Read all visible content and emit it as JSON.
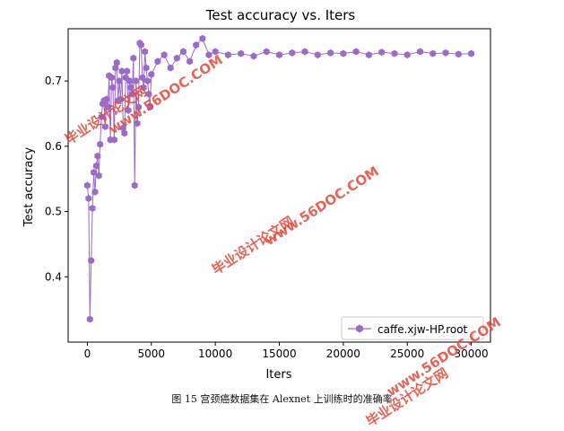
{
  "figure_caption": "图 15 宫颈癌数据集在 Alexnet 上训练时的准确率",
  "watermark_texts": [
    "毕业设计论文网",
    "www.56DOC.COM"
  ],
  "colors": {
    "series": "#9b6bc8",
    "axis": "#000000",
    "watermark": "#e0493c"
  },
  "chart_data": {
    "type": "line",
    "title": "Test accuracy  vs. Iters",
    "xlabel": "Iters",
    "ylabel": "Test accuracy",
    "xlim": [
      -1500,
      31500
    ],
    "ylim": [
      0.3,
      0.78
    ],
    "xticks": [
      0,
      5000,
      10000,
      15000,
      20000,
      25000,
      30000
    ],
    "yticks": [
      0.4,
      0.5,
      0.6,
      0.7
    ],
    "grid": false,
    "legend_position": "lower-right",
    "series": [
      {
        "name": "caffe.xjw-HP.root",
        "marker": "hexagon",
        "x": [
          0,
          100,
          200,
          300,
          400,
          500,
          600,
          700,
          800,
          900,
          1000,
          1100,
          1200,
          1300,
          1400,
          1500,
          1600,
          1700,
          1800,
          1900,
          2000,
          2100,
          2200,
          2300,
          2400,
          2500,
          2600,
          2700,
          2800,
          2900,
          3000,
          3100,
          3200,
          3300,
          3400,
          3500,
          3600,
          3700,
          3800,
          3900,
          4000,
          4100,
          4200,
          4300,
          4400,
          4500,
          4600,
          4700,
          4800,
          4900,
          5000,
          5500,
          6000,
          6500,
          7000,
          7500,
          8000,
          8500,
          9000,
          9500,
          10000,
          11000,
          12000,
          13000,
          14000,
          15000,
          16000,
          17000,
          18000,
          19000,
          20000,
          21000,
          22000,
          23000,
          24000,
          25000,
          26000,
          27000,
          28000,
          29000,
          30000
        ],
        "y": [
          0.54,
          0.52,
          0.335,
          0.425,
          0.505,
          0.56,
          0.53,
          0.57,
          0.585,
          0.555,
          0.603,
          0.645,
          0.665,
          0.67,
          0.63,
          0.672,
          0.66,
          0.708,
          0.61,
          0.705,
          0.69,
          0.61,
          0.72,
          0.728,
          0.67,
          0.7,
          0.672,
          0.715,
          0.628,
          0.62,
          0.705,
          0.715,
          0.655,
          0.7,
          0.69,
          0.68,
          0.735,
          0.54,
          0.7,
          0.635,
          0.66,
          0.758,
          0.755,
          0.705,
          0.69,
          0.745,
          0.72,
          0.7,
          0.68,
          0.66,
          0.71,
          0.73,
          0.74,
          0.72,
          0.735,
          0.745,
          0.73,
          0.755,
          0.765,
          0.74,
          0.745,
          0.74,
          0.742,
          0.738,
          0.745,
          0.74,
          0.743,
          0.745,
          0.74,
          0.743,
          0.742,
          0.745,
          0.74,
          0.744,
          0.742,
          0.74,
          0.745,
          0.742,
          0.743,
          0.741,
          0.742
        ]
      }
    ]
  }
}
